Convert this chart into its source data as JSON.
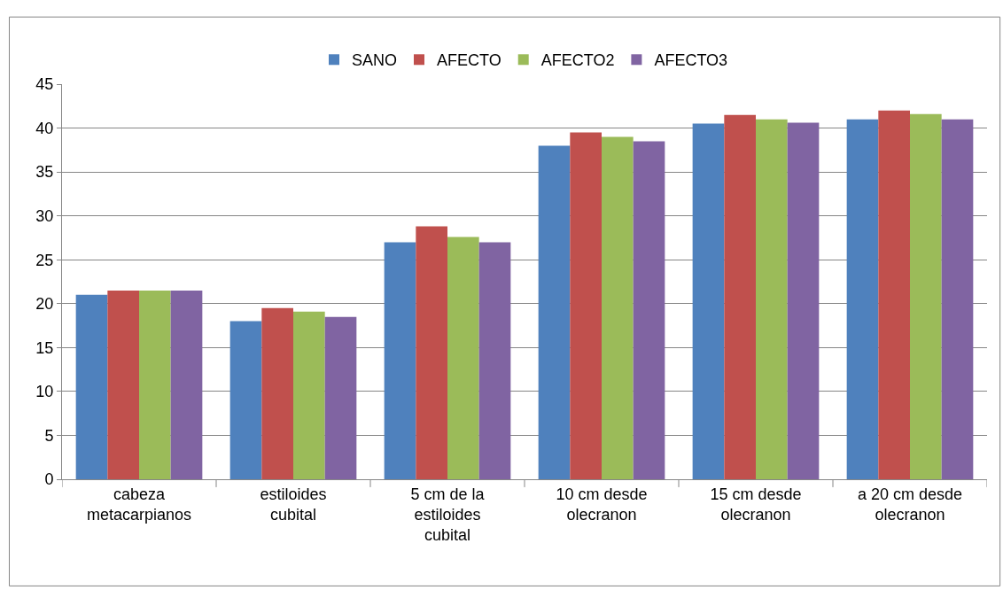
{
  "chart_data": {
    "type": "bar",
    "categories": [
      "cabeza metacarpianos",
      "estiloides cubital",
      "5 cm de la estiloides cubital",
      "10 cm desde olecranon",
      "15 cm desde olecranon",
      "a 20 cm desde olecranon"
    ],
    "series": [
      {
        "name": "SANO",
        "color": "#4f81bd",
        "values": [
          21,
          18,
          27,
          38,
          40.5,
          41
        ]
      },
      {
        "name": "AFECTO",
        "color": "#c0504d",
        "values": [
          21.5,
          19.5,
          28.8,
          39.5,
          41.5,
          42
        ]
      },
      {
        "name": "AFECTO2",
        "color": "#9bbb59",
        "values": [
          21.5,
          19.1,
          27.6,
          39,
          41,
          41.6
        ]
      },
      {
        "name": "AFECTO3",
        "color": "#8064a2",
        "values": [
          21.5,
          18.5,
          27,
          38.5,
          40.6,
          41
        ]
      }
    ],
    "ylim": [
      0,
      45
    ],
    "yticks": [
      0,
      5,
      10,
      15,
      20,
      25,
      30,
      35,
      40,
      45
    ],
    "grid": "y",
    "legend": "top"
  }
}
